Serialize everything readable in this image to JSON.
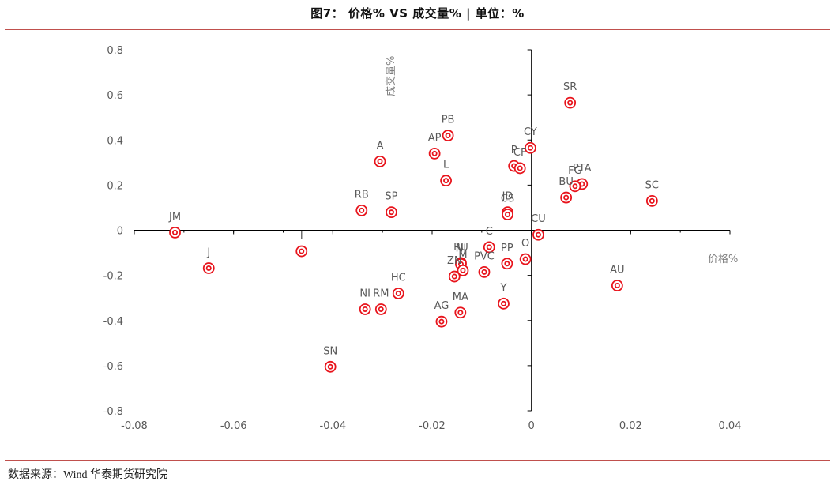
{
  "header": {
    "title": "图7：    价格% VS 成交量% | 单位：%"
  },
  "footer": {
    "source": "数据来源：Wind  华泰期货研究院"
  },
  "chart_data": {
    "type": "scatter",
    "xlabel": "价格%",
    "ylabel": "成交量%",
    "xlim": [
      -0.08,
      0.04
    ],
    "ylim": [
      -0.8,
      0.8
    ],
    "xticks": [
      "-0.08",
      "-0.06",
      "-0.04",
      "-0.02",
      "0",
      "0.02",
      "0.04"
    ],
    "yticks": [
      "0.8",
      "0.6",
      "0.4",
      "0.2",
      "0",
      "-0.2",
      "-0.4",
      "-0.6",
      "-0.8"
    ],
    "marker_color": "#e8141c",
    "grid": false,
    "points": [
      {
        "label": "SR",
        "x": 0.0078,
        "y": 0.565
      },
      {
        "label": "PB",
        "x": -0.0168,
        "y": 0.42
      },
      {
        "label": "CY",
        "x": -0.0002,
        "y": 0.365
      },
      {
        "label": "AP",
        "x": -0.0195,
        "y": 0.34
      },
      {
        "label": "A",
        "x": -0.0305,
        "y": 0.305
      },
      {
        "label": "P",
        "x": -0.0035,
        "y": 0.285
      },
      {
        "label": "CF",
        "x": -0.0023,
        "y": 0.275
      },
      {
        "label": "L",
        "x": -0.0172,
        "y": 0.22
      },
      {
        "label": "PTA",
        "x": 0.0102,
        "y": 0.205
      },
      {
        "label": "FG",
        "x": 0.0088,
        "y": 0.195
      },
      {
        "label": "SC",
        "x": 0.0243,
        "y": 0.13
      },
      {
        "label": "BU",
        "x": 0.007,
        "y": 0.145
      },
      {
        "label": "RB",
        "x": -0.0342,
        "y": 0.088
      },
      {
        "label": "SP",
        "x": -0.0282,
        "y": 0.08
      },
      {
        "label": "JM",
        "x": -0.0718,
        "y": -0.01
      },
      {
        "label": "JD",
        "x": -0.0048,
        "y": 0.08
      },
      {
        "label": "CS",
        "x": -0.0048,
        "y": 0.07
      },
      {
        "label": "CU",
        "x": 0.0014,
        "y": -0.02
      },
      {
        "label": "C",
        "x": -0.0085,
        "y": -0.075
      },
      {
        "label": "J",
        "x": -0.065,
        "y": -0.168
      },
      {
        "label": "I",
        "x": -0.0463,
        "y": -0.093
      },
      {
        "label": "RU",
        "x": -0.0142,
        "y": -0.145
      },
      {
        "label": "NI",
        "x": -0.0142,
        "y": -0.15
      },
      {
        "label": "M",
        "x": -0.0138,
        "y": -0.178
      },
      {
        "label": "ZN",
        "x": -0.0155,
        "y": -0.205
      },
      {
        "label": "PVC",
        "x": -0.0095,
        "y": -0.185
      },
      {
        "label": "PP",
        "x": -0.0049,
        "y": -0.148
      },
      {
        "label": "O",
        "x": -0.0012,
        "y": -0.128
      },
      {
        "label": "AU",
        "x": 0.0173,
        "y": -0.245
      },
      {
        "label": "HC",
        "x": -0.0268,
        "y": -0.28
      },
      {
        "label": "NI",
        "x": -0.0335,
        "y": -0.35
      },
      {
        "label": "RM",
        "x": -0.0303,
        "y": -0.35
      },
      {
        "label": "AG",
        "x": -0.0181,
        "y": -0.405
      },
      {
        "label": "MA",
        "x": -0.0143,
        "y": -0.365
      },
      {
        "label": "Y",
        "x": -0.0056,
        "y": -0.325
      },
      {
        "label": "SN",
        "x": -0.0405,
        "y": -0.605
      }
    ]
  }
}
